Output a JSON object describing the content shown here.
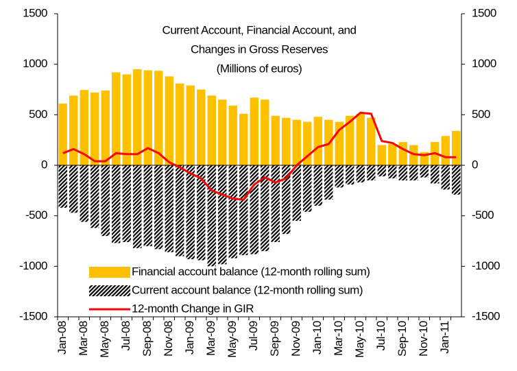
{
  "chart_data": {
    "type": "bar",
    "title": [
      "Current Account, Financial Account, and",
      "Changes in Gross Reserves",
      "(Millions of euros)"
    ],
    "categories": [
      "Jan-08",
      null,
      "Mar-08",
      null,
      "May-08",
      null,
      "Jul-08",
      null,
      "Sep-08",
      null,
      "Nov-08",
      null,
      "Jan-09",
      null,
      "Mar-09",
      null,
      "May-09",
      null,
      "Jul-09",
      null,
      "Sep-09",
      null,
      "Nov-09",
      null,
      "Jan-10",
      null,
      "Mar-10",
      null,
      "May-10",
      null,
      "Jul-10",
      null,
      "Sep-10",
      null,
      "Nov-10",
      null,
      "Jan-11",
      null
    ],
    "series": [
      {
        "name": "Financial account balance (12-month rolling sum)",
        "type": "bar",
        "color": "#ffc000",
        "values": [
          610,
          690,
          745,
          720,
          740,
          920,
          900,
          950,
          940,
          935,
          880,
          810,
          790,
          750,
          690,
          650,
          590,
          510,
          670,
          650,
          490,
          470,
          450,
          430,
          480,
          450,
          430,
          490,
          510,
          470,
          200,
          210,
          230,
          200,
          130,
          230,
          290,
          340
        ]
      },
      {
        "name": "Current account balance (12-month rolling sum)",
        "type": "bar",
        "color": "#000000",
        "pattern": "hatch",
        "values": [
          -420,
          -470,
          -560,
          -620,
          -700,
          -770,
          -760,
          -820,
          -800,
          -830,
          -860,
          -900,
          -930,
          -940,
          -1000,
          -980,
          -920,
          -890,
          -880,
          -850,
          -760,
          -680,
          -550,
          -460,
          -400,
          -340,
          -220,
          -190,
          -170,
          -150,
          -110,
          -130,
          -150,
          -150,
          -120,
          -180,
          -240,
          -290
        ]
      },
      {
        "name": "12-month Change in GIR",
        "type": "line",
        "color": "#ff0000",
        "values": [
          120,
          160,
          110,
          40,
          40,
          120,
          110,
          110,
          170,
          120,
          30,
          -20,
          -80,
          -130,
          -250,
          -290,
          -330,
          -340,
          -190,
          -120,
          -170,
          -130,
          0,
          90,
          180,
          210,
          350,
          430,
          520,
          510,
          240,
          220,
          160,
          110,
          100,
          120,
          80,
          80
        ]
      }
    ],
    "ylim": [
      -1500,
      1500
    ],
    "yticks": [
      -1500,
      -1000,
      -500,
      0,
      500,
      1000,
      1500
    ],
    "y2lim": [
      -1500,
      1500
    ],
    "y2ticks": [
      -1500,
      -1000,
      -500,
      0,
      500,
      1000,
      1500
    ]
  }
}
